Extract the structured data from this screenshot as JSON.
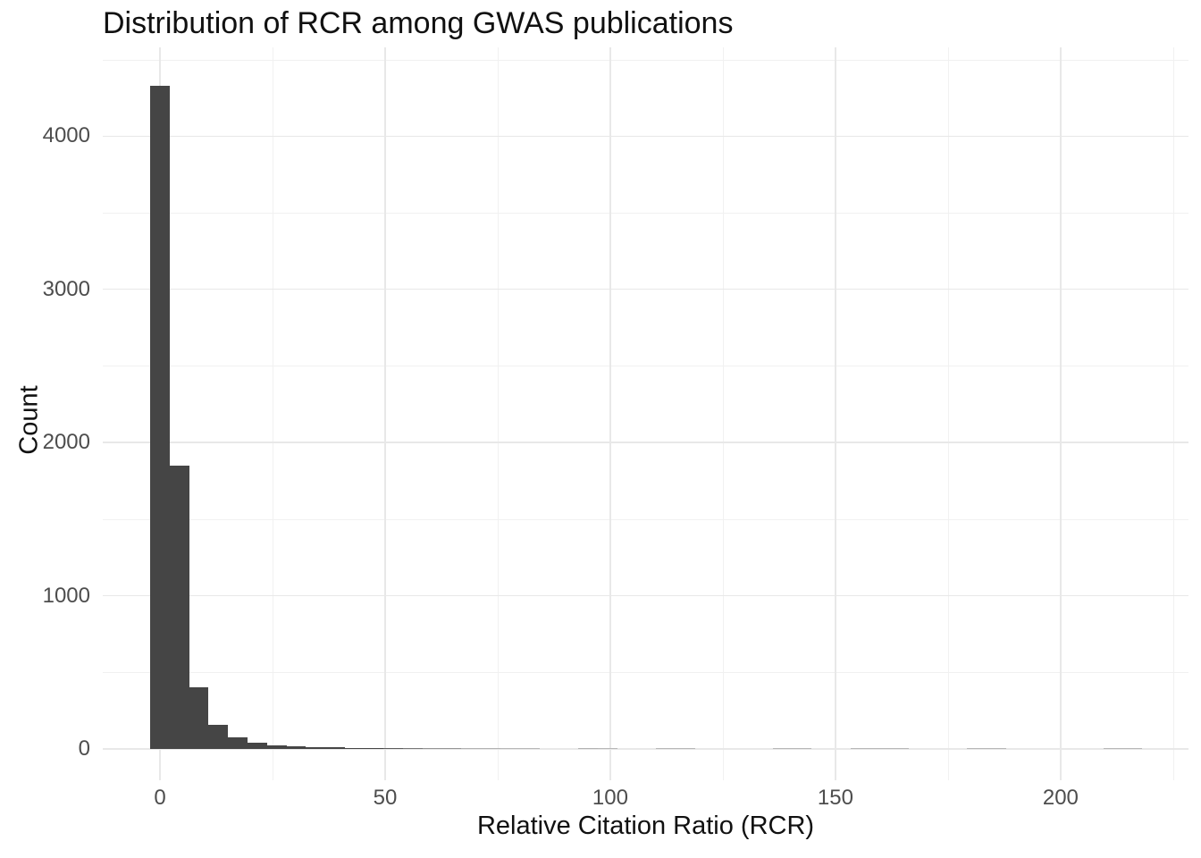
{
  "title": "Distribution of RCR among GWAS publications",
  "chart_data": {
    "type": "bar",
    "subtype": "histogram",
    "title": "Distribution of RCR among GWAS publications",
    "xlabel": "Relative Citation Ratio (RCR)",
    "ylabel": "Count",
    "x_major_ticks": [
      0,
      50,
      100,
      150,
      200
    ],
    "x_minor_gridlines": [
      25,
      75,
      125,
      175,
      225
    ],
    "y_major_ticks": [
      0,
      1000,
      2000,
      3000,
      4000
    ],
    "y_minor_gridlines": [
      500,
      1500,
      2500,
      3500,
      4500
    ],
    "xlim": [
      -12.7,
      228.4
    ],
    "ylim": [
      -204,
      4579
    ],
    "grid": "major+minor",
    "legend": "none",
    "bin_width": 4.32,
    "bins": [
      {
        "x": 0,
        "count": 4330
      },
      {
        "x": 4.32,
        "count": 1850
      },
      {
        "x": 8.64,
        "count": 405
      },
      {
        "x": 12.96,
        "count": 155
      },
      {
        "x": 17.28,
        "count": 75
      },
      {
        "x": 21.6,
        "count": 40
      },
      {
        "x": 25.92,
        "count": 25
      },
      {
        "x": 30.24,
        "count": 17
      },
      {
        "x": 34.56,
        "count": 12
      },
      {
        "x": 38.88,
        "count": 9
      },
      {
        "x": 43.2,
        "count": 7
      },
      {
        "x": 47.52,
        "count": 6
      },
      {
        "x": 51.84,
        "count": 5
      },
      {
        "x": 56.16,
        "count": 4
      },
      {
        "x": 60.48,
        "count": 3
      },
      {
        "x": 64.8,
        "count": 3
      },
      {
        "x": 69.12,
        "count": 2
      },
      {
        "x": 73.44,
        "count": 2
      },
      {
        "x": 77.76,
        "count": 1
      },
      {
        "x": 82.08,
        "count": 1
      },
      {
        "x": 95.04,
        "count": 2
      },
      {
        "x": 99.36,
        "count": 1
      },
      {
        "x": 112.32,
        "count": 1
      },
      {
        "x": 116.64,
        "count": 1
      },
      {
        "x": 138.24,
        "count": 1
      },
      {
        "x": 142.56,
        "count": 1
      },
      {
        "x": 155.52,
        "count": 1
      },
      {
        "x": 159.84,
        "count": 1
      },
      {
        "x": 164.16,
        "count": 1
      },
      {
        "x": 181.44,
        "count": 1
      },
      {
        "x": 185.76,
        "count": 1
      },
      {
        "x": 211.68,
        "count": 1
      },
      {
        "x": 216,
        "count": 1
      }
    ],
    "colors": {
      "bar": "#454545",
      "grid_major": "#e8e8e8",
      "grid_minor": "#f1f1f1",
      "tick_label": "#4d4d4d",
      "text": "#111111",
      "background": "#ffffff"
    }
  }
}
